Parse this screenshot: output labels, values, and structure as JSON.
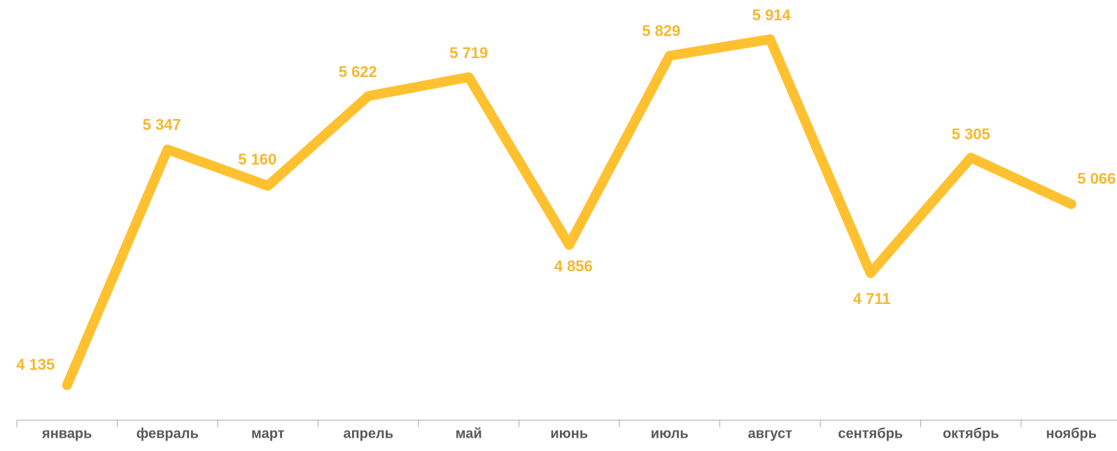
{
  "chart_data": {
    "type": "line",
    "categories": [
      "январь",
      "февраль",
      "март",
      "апрель",
      "май",
      "июнь",
      "июль",
      "август",
      "сентябрь",
      "октябрь",
      "ноябрь"
    ],
    "series": [
      {
        "color": "#ffc12f",
        "values": [
          4135,
          5347,
          5160,
          5622,
          5719,
          4856,
          5829,
          5914,
          4711,
          5305,
          5066
        ],
        "value_labels": [
          "4 135",
          "5 347",
          "5 160",
          "5 622",
          "5 719",
          "4 856",
          "5 829",
          "5 914",
          "4 711",
          "5 305",
          "5 066"
        ]
      }
    ]
  }
}
